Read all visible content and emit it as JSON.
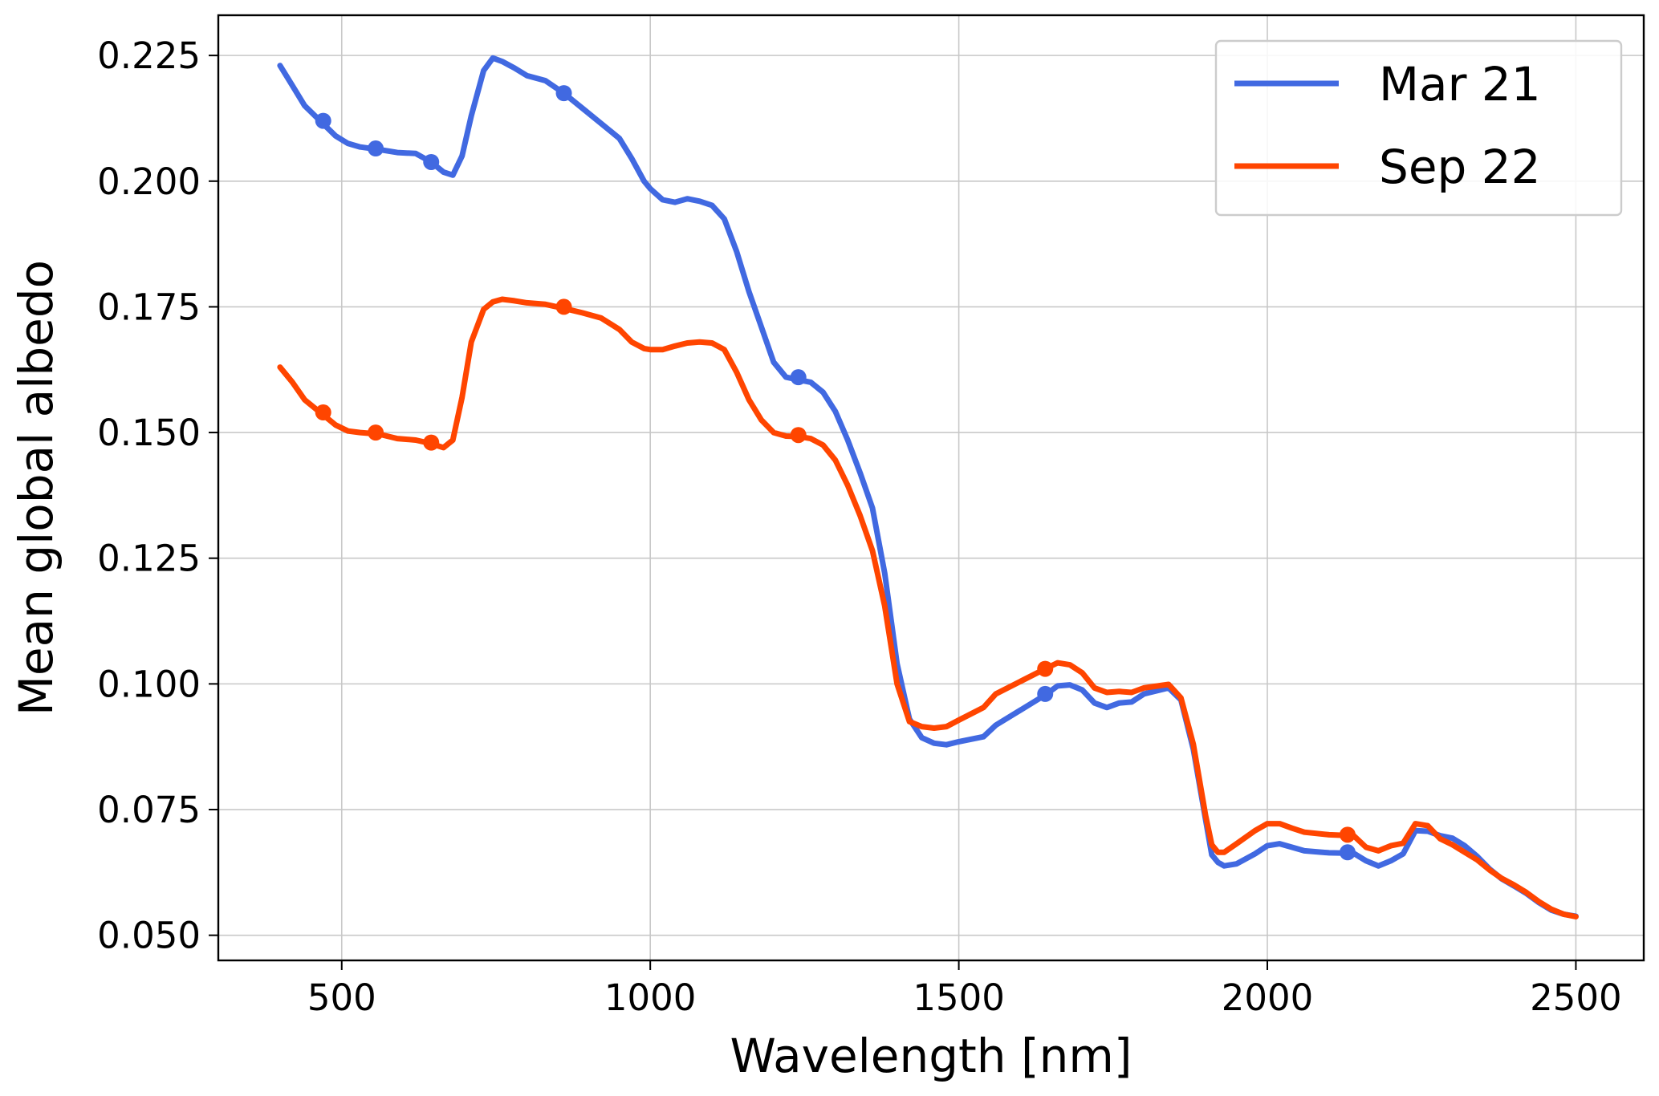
{
  "chart_data": {
    "type": "line",
    "title": "",
    "xlabel": "Wavelength [nm]",
    "ylabel": "Mean global albedo",
    "xlim": [
      300,
      2610
    ],
    "ylim": [
      0.045,
      0.233
    ],
    "xticks": [
      500,
      1000,
      1500,
      2000,
      2500
    ],
    "xtick_labels": [
      "500",
      "1000",
      "1500",
      "2000",
      "2500"
    ],
    "yticks": [
      0.05,
      0.075,
      0.1,
      0.125,
      0.15,
      0.175,
      0.2,
      0.225
    ],
    "ytick_labels": [
      "0.050",
      "0.075",
      "0.100",
      "0.125",
      "0.150",
      "0.175",
      "0.200",
      "0.225"
    ],
    "grid": true,
    "legend_position": "top-right",
    "series": [
      {
        "name": "Mar 21",
        "color": "#4169e1",
        "x": [
          400,
          420,
          440,
          465,
          490,
          510,
          530,
          560,
          590,
          620,
          645,
          665,
          680,
          695,
          710,
          730,
          745,
          760,
          780,
          800,
          830,
          860,
          890,
          920,
          950,
          970,
          990,
          1000,
          1020,
          1040,
          1060,
          1080,
          1100,
          1120,
          1140,
          1160,
          1180,
          1200,
          1220,
          1240,
          1260,
          1280,
          1300,
          1320,
          1340,
          1360,
          1380,
          1400,
          1420,
          1440,
          1460,
          1480,
          1500,
          1540,
          1560,
          1600,
          1640,
          1660,
          1680,
          1700,
          1720,
          1740,
          1760,
          1780,
          1800,
          1840,
          1860,
          1880,
          1900,
          1910,
          1920,
          1930,
          1950,
          1980,
          2000,
          2020,
          2040,
          2060,
          2100,
          2140,
          2160,
          2180,
          2200,
          2220,
          2240,
          2260,
          2280,
          2300,
          2320,
          2340,
          2360,
          2380,
          2400,
          2420,
          2440,
          2460,
          2480,
          2500
        ],
        "y": [
          0.223,
          0.219,
          0.215,
          0.212,
          0.209,
          0.2075,
          0.2068,
          0.2063,
          0.2057,
          0.2055,
          0.2038,
          0.2018,
          0.2012,
          0.205,
          0.213,
          0.222,
          0.2245,
          0.2238,
          0.2225,
          0.221,
          0.22,
          0.2175,
          0.2145,
          0.2115,
          0.2085,
          0.2045,
          0.2,
          0.1985,
          0.1963,
          0.1958,
          0.1965,
          0.196,
          0.1952,
          0.1925,
          0.186,
          0.178,
          0.171,
          0.164,
          0.161,
          0.1605,
          0.16,
          0.158,
          0.1542,
          0.1485,
          0.142,
          0.135,
          0.122,
          0.104,
          0.093,
          0.0893,
          0.0882,
          0.0879,
          0.0885,
          0.0895,
          0.0918,
          0.0948,
          0.0978,
          0.0996,
          0.0998,
          0.0988,
          0.0962,
          0.0953,
          0.0962,
          0.0964,
          0.098,
          0.0992,
          0.0968,
          0.087,
          0.073,
          0.066,
          0.0645,
          0.0638,
          0.0642,
          0.0662,
          0.0678,
          0.0682,
          0.0675,
          0.0668,
          0.0664,
          0.0663,
          0.0648,
          0.0638,
          0.0648,
          0.0662,
          0.0708,
          0.0707,
          0.0698,
          0.0693,
          0.0678,
          0.0657,
          0.0632,
          0.0612,
          0.0598,
          0.0583,
          0.0565,
          0.055,
          0.0542,
          0.0538
        ]
      },
      {
        "name": "Sep 22",
        "color": "#ff4500",
        "x": [
          400,
          420,
          440,
          465,
          490,
          510,
          530,
          560,
          590,
          620,
          645,
          665,
          680,
          695,
          710,
          730,
          745,
          760,
          780,
          800,
          830,
          860,
          890,
          920,
          950,
          970,
          990,
          1000,
          1020,
          1040,
          1060,
          1080,
          1100,
          1120,
          1140,
          1160,
          1180,
          1200,
          1220,
          1240,
          1260,
          1280,
          1300,
          1320,
          1340,
          1360,
          1380,
          1400,
          1420,
          1440,
          1460,
          1480,
          1500,
          1540,
          1560,
          1600,
          1640,
          1660,
          1680,
          1700,
          1720,
          1740,
          1760,
          1780,
          1800,
          1840,
          1860,
          1880,
          1900,
          1910,
          1920,
          1930,
          1950,
          1980,
          2000,
          2020,
          2040,
          2060,
          2100,
          2140,
          2160,
          2180,
          2200,
          2220,
          2240,
          2260,
          2280,
          2300,
          2320,
          2340,
          2360,
          2380,
          2400,
          2420,
          2440,
          2460,
          2480,
          2500
        ],
        "y": [
          0.163,
          0.16,
          0.1565,
          0.154,
          0.1515,
          0.1503,
          0.15,
          0.1497,
          0.1488,
          0.1485,
          0.1478,
          0.147,
          0.1485,
          0.157,
          0.168,
          0.1745,
          0.176,
          0.1765,
          0.1762,
          0.1758,
          0.1755,
          0.1747,
          0.1738,
          0.1728,
          0.1705,
          0.168,
          0.1667,
          0.1665,
          0.1665,
          0.1672,
          0.1678,
          0.168,
          0.1678,
          0.1665,
          0.162,
          0.1565,
          0.1525,
          0.15,
          0.1493,
          0.1492,
          0.1488,
          0.1475,
          0.1445,
          0.1395,
          0.1335,
          0.1265,
          0.1155,
          0.1,
          0.0925,
          0.0915,
          0.0912,
          0.0915,
          0.0928,
          0.0953,
          0.098,
          0.1005,
          0.103,
          0.1042,
          0.1038,
          0.1022,
          0.0992,
          0.0983,
          0.0985,
          0.0983,
          0.0992,
          0.0999,
          0.0972,
          0.088,
          0.0738,
          0.068,
          0.0665,
          0.0665,
          0.0682,
          0.0708,
          0.0722,
          0.0722,
          0.0713,
          0.0705,
          0.07,
          0.0698,
          0.0675,
          0.0668,
          0.0678,
          0.0683,
          0.0722,
          0.0718,
          0.0692,
          0.068,
          0.0665,
          0.065,
          0.063,
          0.0613,
          0.06,
          0.0585,
          0.0567,
          0.0552,
          0.0542,
          0.0537
        ]
      }
    ],
    "markers": [
      {
        "series": 0,
        "x": [
          470,
          555,
          645,
          860,
          1240,
          1640,
          2130
        ],
        "y": [
          0.212,
          0.2065,
          0.2038,
          0.2175,
          0.161,
          0.098,
          0.0665
        ]
      },
      {
        "series": 1,
        "x": [
          470,
          555,
          645,
          860,
          1240,
          1640,
          2130
        ],
        "y": [
          0.154,
          0.15,
          0.148,
          0.175,
          0.1495,
          0.103,
          0.07
        ]
      }
    ]
  }
}
